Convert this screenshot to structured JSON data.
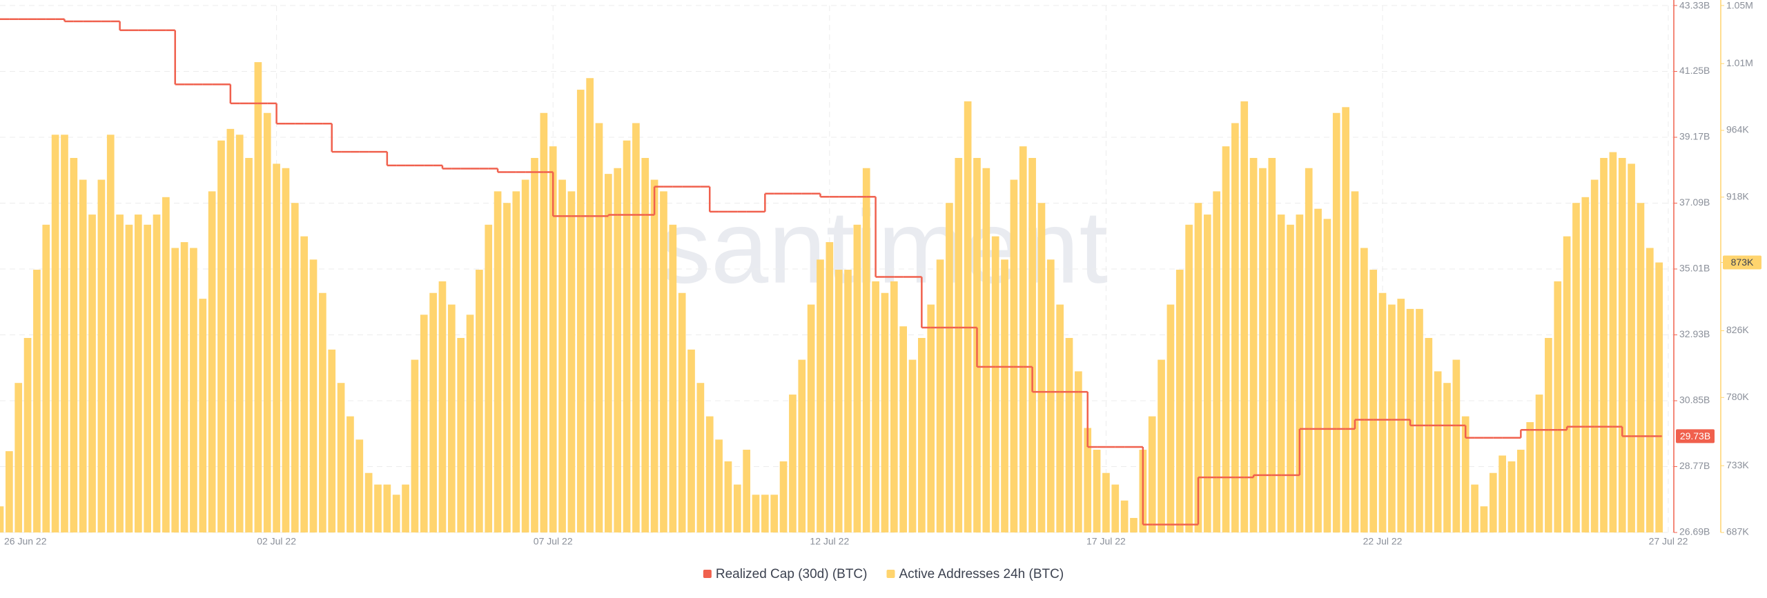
{
  "chart_data": {
    "type": "bar",
    "watermark": "santiment",
    "categories": [
      "26 Jun 22",
      null,
      null,
      null,
      null,
      null,
      null,
      null,
      null,
      null,
      null,
      null,
      null,
      null,
      null,
      null,
      null,
      null,
      null,
      null,
      null,
      null,
      null,
      null,
      null,
      null,
      null,
      null,
      null,
      null,
      "02 Jul 22",
      null,
      null,
      null,
      null,
      null,
      null,
      null,
      null,
      null,
      null,
      null,
      null,
      null,
      null,
      null,
      null,
      null,
      null,
      null,
      null,
      null,
      null,
      null,
      null,
      null,
      null,
      null,
      null,
      null,
      "07 Jul 22",
      null,
      null,
      null,
      null,
      null,
      null,
      null,
      null,
      null,
      null,
      null,
      null,
      null,
      null,
      null,
      null,
      null,
      null,
      null,
      null,
      null,
      null,
      null,
      null,
      null,
      null,
      null,
      null,
      null,
      "12 Jul 22",
      null,
      null,
      null,
      null,
      null,
      null,
      null,
      null,
      null,
      null,
      null,
      null,
      null,
      null,
      null,
      null,
      null,
      null,
      null,
      null,
      null,
      null,
      null,
      null,
      null,
      null,
      null,
      null,
      null,
      "17 Jul 22",
      null,
      null,
      null,
      null,
      null,
      null,
      null,
      null,
      null,
      null,
      null,
      null,
      null,
      null,
      null,
      null,
      null,
      null,
      null,
      null,
      null,
      null,
      null,
      null,
      null,
      null,
      null,
      null,
      null,
      "22 Jul 22",
      null,
      null,
      null,
      null,
      null,
      null,
      null,
      null,
      null,
      null,
      null,
      null,
      null,
      null,
      null,
      null,
      null,
      null,
      null,
      null,
      null,
      null,
      null,
      null,
      null,
      null,
      null,
      null,
      null,
      null,
      "27 Jul 22"
    ],
    "series": [
      {
        "name": "Realized Cap (30d) (BTC)",
        "type": "line",
        "axis": "y",
        "color": "#f0604d",
        "last_value_label": "29.73B",
        "values": [
          42.9,
          42.9,
          42.9,
          42.9,
          42.9,
          42.9,
          42.9,
          42.83,
          42.83,
          42.83,
          42.83,
          42.83,
          42.83,
          42.55,
          42.55,
          42.55,
          42.55,
          42.55,
          42.55,
          40.84,
          40.84,
          40.84,
          40.84,
          40.84,
          40.84,
          40.24,
          40.24,
          40.24,
          40.24,
          40.24,
          39.6,
          39.6,
          39.6,
          39.6,
          39.6,
          39.6,
          38.71,
          38.71,
          38.71,
          38.71,
          38.71,
          38.71,
          38.28,
          38.28,
          38.28,
          38.28,
          38.28,
          38.28,
          38.18,
          38.18,
          38.18,
          38.18,
          38.18,
          38.18,
          38.07,
          38.07,
          38.07,
          38.07,
          38.07,
          38.07,
          36.68,
          36.68,
          36.68,
          36.68,
          36.68,
          36.68,
          36.72,
          36.72,
          36.72,
          36.72,
          36.72,
          37.61,
          37.61,
          37.61,
          37.61,
          37.61,
          37.61,
          36.82,
          36.82,
          36.82,
          36.82,
          36.82,
          36.82,
          37.39,
          37.39,
          37.39,
          37.39,
          37.39,
          37.39,
          37.29,
          37.29,
          37.29,
          37.29,
          37.29,
          37.29,
          34.76,
          34.76,
          34.76,
          34.76,
          34.76,
          33.16,
          33.16,
          33.16,
          33.16,
          33.16,
          33.16,
          31.92,
          31.92,
          31.92,
          31.92,
          31.92,
          31.92,
          31.13,
          31.13,
          31.13,
          31.13,
          31.13,
          31.13,
          29.39,
          29.39,
          29.39,
          29.39,
          29.39,
          29.39,
          26.94,
          26.94,
          26.94,
          26.94,
          26.94,
          26.94,
          28.43,
          28.43,
          28.43,
          28.43,
          28.43,
          28.43,
          28.5,
          28.5,
          28.5,
          28.5,
          28.5,
          29.96,
          29.96,
          29.96,
          29.96,
          29.96,
          29.96,
          30.25,
          30.25,
          30.25,
          30.25,
          30.25,
          30.25,
          30.07,
          30.07,
          30.07,
          30.07,
          30.07,
          30.07,
          29.68,
          29.68,
          29.68,
          29.68,
          29.68,
          29.68,
          29.93,
          29.93,
          29.93,
          29.93,
          29.93,
          30.03,
          30.03,
          30.03,
          30.03,
          30.03,
          30.03,
          29.73,
          29.73,
          29.73,
          29.73,
          29.73,
          null
        ]
      },
      {
        "name": "Active Addresses 24h (BTC)",
        "type": "bar",
        "axis": "y2",
        "color": "#ffd46e",
        "last_value_label": "873K",
        "values": [
          705,
          743,
          790,
          821,
          868,
          899,
          961,
          961,
          945,
          930,
          906,
          930,
          961,
          906,
          899,
          906,
          899,
          906,
          918,
          883,
          887,
          883,
          848,
          922,
          957,
          965,
          961,
          945,
          1011,
          976,
          941,
          938,
          914,
          891,
          875,
          852,
          813,
          790,
          767,
          751,
          728,
          720,
          720,
          713,
          720,
          806,
          837,
          852,
          860,
          844,
          821,
          837,
          868,
          899,
          922,
          914,
          922,
          930,
          945,
          976,
          953,
          930,
          922,
          992,
          1000,
          969,
          934,
          938,
          957,
          969,
          945,
          930,
          922,
          899,
          852,
          813,
          790,
          767,
          751,
          736,
          720,
          744,
          713,
          713,
          713,
          736,
          782,
          806,
          844,
          875,
          887,
          868,
          868,
          899,
          938,
          860,
          852,
          860,
          829,
          806,
          821,
          844,
          875,
          914,
          945,
          984,
          945,
          938,
          891,
          875,
          930,
          953,
          945,
          914,
          875,
          844,
          821,
          798,
          759,
          744,
          728,
          720,
          709,
          697,
          744,
          767,
          806,
          844,
          868,
          899,
          914,
          906,
          922,
          953,
          969,
          984,
          945,
          938,
          945,
          906,
          899,
          906,
          938,
          910,
          903,
          976,
          980,
          922,
          883,
          868,
          852,
          844,
          848,
          841,
          841,
          821,
          798,
          790,
          806,
          767,
          720,
          705,
          728,
          740,
          736,
          744,
          763,
          782,
          821,
          860,
          891,
          914,
          918,
          930,
          945,
          949,
          945,
          941,
          914,
          883,
          873,
          null
        ]
      }
    ],
    "ylim": [
      26.69,
      43.33
    ],
    "yticks": [
      {
        "value": 26.69,
        "label": "26.69B"
      },
      {
        "value": 28.77,
        "label": "28.77B"
      },
      {
        "value": 30.85,
        "label": "30.85B"
      },
      {
        "value": 32.93,
        "label": "32.93B"
      },
      {
        "value": 35.01,
        "label": "35.01B"
      },
      {
        "value": 37.09,
        "label": "37.09B"
      },
      {
        "value": 39.17,
        "label": "39.17B"
      },
      {
        "value": 41.25,
        "label": "41.25B"
      },
      {
        "value": 43.33,
        "label": "43.33B"
      }
    ],
    "y2lim": [
      687,
      1050
    ],
    "y2ticks": [
      {
        "value": 687,
        "label": "687K"
      },
      {
        "value": 733,
        "label": "733K"
      },
      {
        "value": 780,
        "label": "780K"
      },
      {
        "value": 826,
        "label": "826K"
      },
      {
        "value": 873,
        "label": "873K"
      },
      {
        "value": 918,
        "label": "918K"
      },
      {
        "value": 964,
        "label": "964K"
      },
      {
        "value": 1010,
        "label": "1.01M"
      },
      {
        "value": 1050,
        "label": "1.05M"
      }
    ],
    "grid": true,
    "legend": "bottom"
  }
}
